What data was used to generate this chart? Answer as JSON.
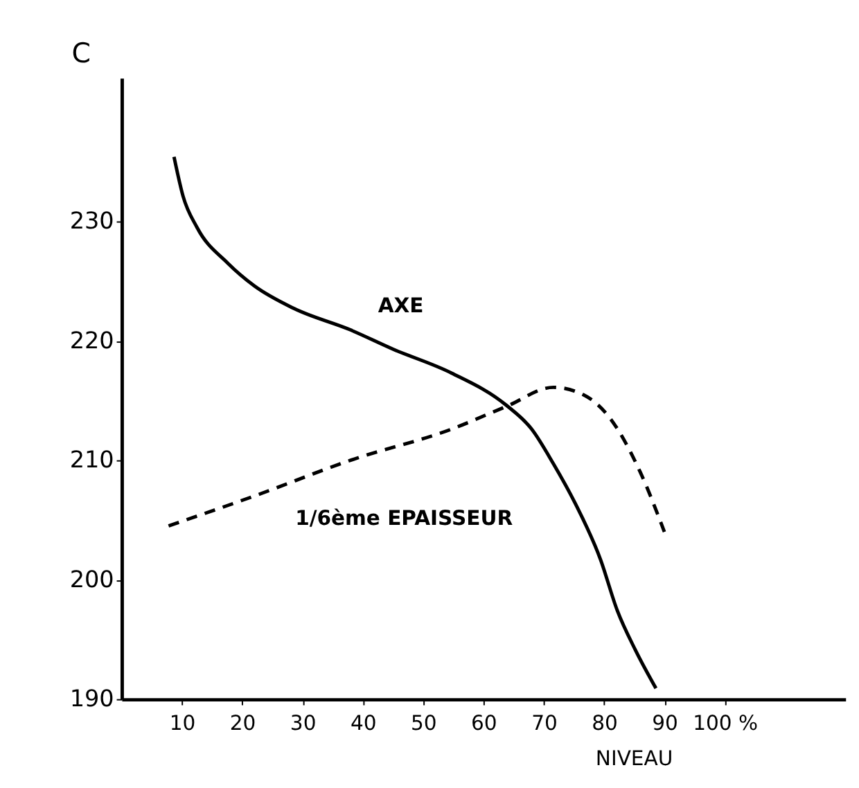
{
  "chart_data": {
    "type": "line",
    "xlabel": "NIVEAU",
    "ylabel": "C",
    "xlim": [
      0,
      120
    ],
    "ylim": [
      190,
      242
    ],
    "xticks": [
      10,
      20,
      30,
      40,
      50,
      60,
      70,
      80,
      90,
      {
        "value": 100,
        "label": "100 %"
      }
    ],
    "yticks": [
      190,
      200,
      210,
      220,
      230
    ],
    "grid": false,
    "marker": "none",
    "series": [
      {
        "name": "AXE",
        "color": "#000000",
        "line_style": "solid",
        "x": [
          8.7,
          10.2,
          12.5,
          17.6,
          22,
          28.6,
          38,
          45,
          54.7,
          63.8,
          68,
          71.6,
          75.2,
          79.4,
          82.2,
          85.2,
          88.6
        ],
        "values": [
          235.4,
          232.1,
          229.5,
          226.5,
          224.6,
          222.7,
          220.9,
          219.3,
          217.3,
          214.6,
          212.6,
          209.7,
          206.4,
          201.7,
          197.4,
          194.1,
          190.9
        ]
      },
      {
        "name": "1/6ème EPAISSEUR",
        "color": "#000000",
        "line_style": "dashed",
        "x": [
          7.8,
          22,
          38,
          54.7,
          63.8,
          71.6,
          76.5,
          80.7,
          86,
          90
        ],
        "values": [
          204.5,
          207,
          210,
          212.6,
          214.5,
          216.1,
          215.5,
          213.7,
          209,
          204
        ]
      }
    ]
  }
}
